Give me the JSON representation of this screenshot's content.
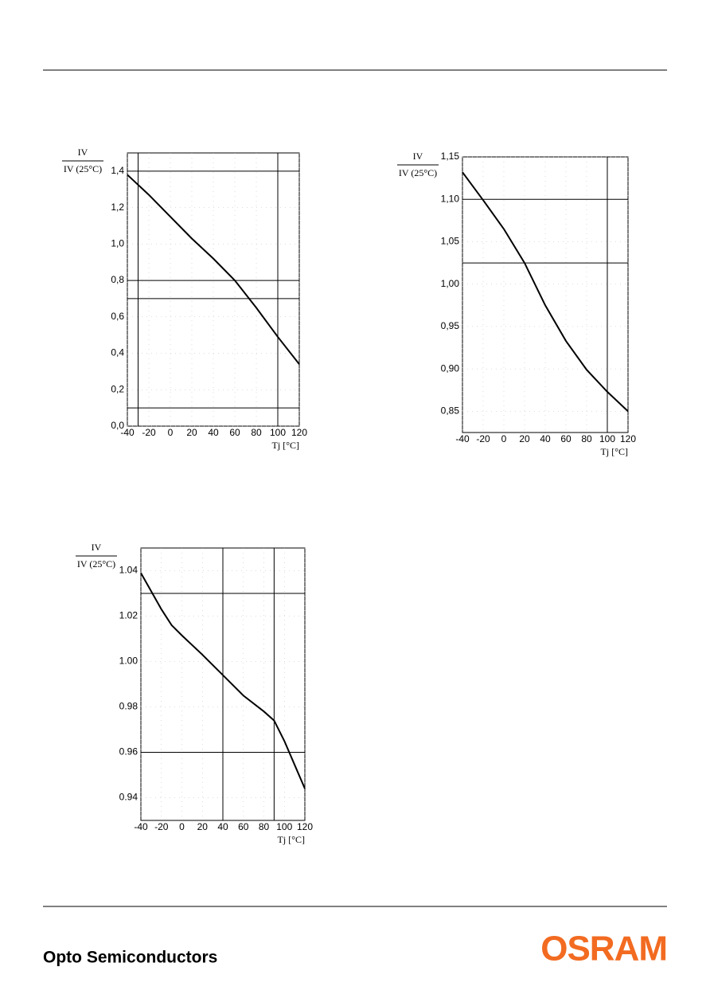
{
  "chart_data": [
    {
      "type": "line",
      "y_label_top": "IV",
      "y_label_bottom": "IV (25°C)",
      "x_label": "Tj [°C]",
      "x": [
        -40,
        -20,
        0,
        20,
        40,
        60,
        80,
        100,
        120
      ],
      "series": [
        {
          "color": "#000000",
          "values": [
            1.38,
            1.27,
            1.15,
            1.03,
            0.92,
            0.8,
            0.65,
            0.49,
            0.34
          ]
        }
      ],
      "xlim": [
        -40,
        120
      ],
      "ylim": [
        0,
        1.5
      ],
      "xticks": [
        -40,
        -20,
        0,
        20,
        40,
        60,
        80,
        100,
        120
      ],
      "yticks": [
        {
          "value": 0,
          "label": "0,0"
        },
        {
          "value": 0.2,
          "label": "0,2"
        },
        {
          "value": 0.4,
          "label": "0,4"
        },
        {
          "value": 0.6,
          "label": "0,6"
        },
        {
          "value": 0.8,
          "label": "0,8"
        },
        {
          "value": 1.0,
          "label": "1,0"
        },
        {
          "value": 1.2,
          "label": "1,2"
        },
        {
          "value": 1.4,
          "label": "1,4"
        }
      ],
      "hlines": [
        1.4,
        0.8,
        0.7,
        0.1
      ],
      "vlines": [
        -30,
        100
      ],
      "grid": true
    },
    {
      "type": "line",
      "y_label_top": "IV",
      "y_label_bottom": "IV (25°C)",
      "x_label": "Tj [°C]",
      "x": [
        -40,
        -20,
        0,
        20,
        40,
        60,
        80,
        100,
        120
      ],
      "series": [
        {
          "color": "#000000",
          "values": [
            1.132,
            1.099,
            1.065,
            1.025,
            0.975,
            0.933,
            0.899,
            0.873,
            0.85
          ]
        }
      ],
      "xlim": [
        -40,
        120
      ],
      "ylim": [
        0.825,
        1.15
      ],
      "xticks": [
        -40,
        -20,
        0,
        20,
        40,
        60,
        80,
        100,
        120
      ],
      "yticks": [
        {
          "value": 0.85,
          "label": "0,85"
        },
        {
          "value": 0.9,
          "label": "0,90"
        },
        {
          "value": 0.95,
          "label": "0,95"
        },
        {
          "value": 1.0,
          "label": "1,00"
        },
        {
          "value": 1.05,
          "label": "1,05"
        },
        {
          "value": 1.1,
          "label": "1,10"
        },
        {
          "value": 1.15,
          "label": "1,15"
        }
      ],
      "hlines": [
        1.1,
        1.025
      ],
      "vlines": [
        100
      ],
      "grid": true
    },
    {
      "type": "line",
      "y_label_top": "IV",
      "y_label_bottom": "IV (25°C)",
      "x_label": "Tj [°C]",
      "x": [
        -40,
        -20,
        -10,
        0,
        20,
        40,
        60,
        80,
        90,
        100,
        110,
        120
      ],
      "series": [
        {
          "color": "#000000",
          "values": [
            1.039,
            1.023,
            1.016,
            1.0115,
            1.003,
            0.994,
            0.985,
            0.978,
            0.974,
            0.965,
            0.9545,
            0.944
          ]
        }
      ],
      "xlim": [
        -40,
        120
      ],
      "ylim": [
        0.93,
        1.05
      ],
      "xticks": [
        -40,
        -20,
        0,
        20,
        40,
        60,
        80,
        100,
        120
      ],
      "yticks": [
        0.94,
        0.96,
        0.98,
        {
          "value": 1.0,
          "label": "1.00"
        },
        1.02,
        1.04
      ],
      "hlines": [
        1.03,
        0.96
      ],
      "vlines": [
        40,
        90
      ],
      "grid": true
    }
  ],
  "footer": {
    "company": "Opto Semiconductors",
    "logo": "OSRAM"
  }
}
